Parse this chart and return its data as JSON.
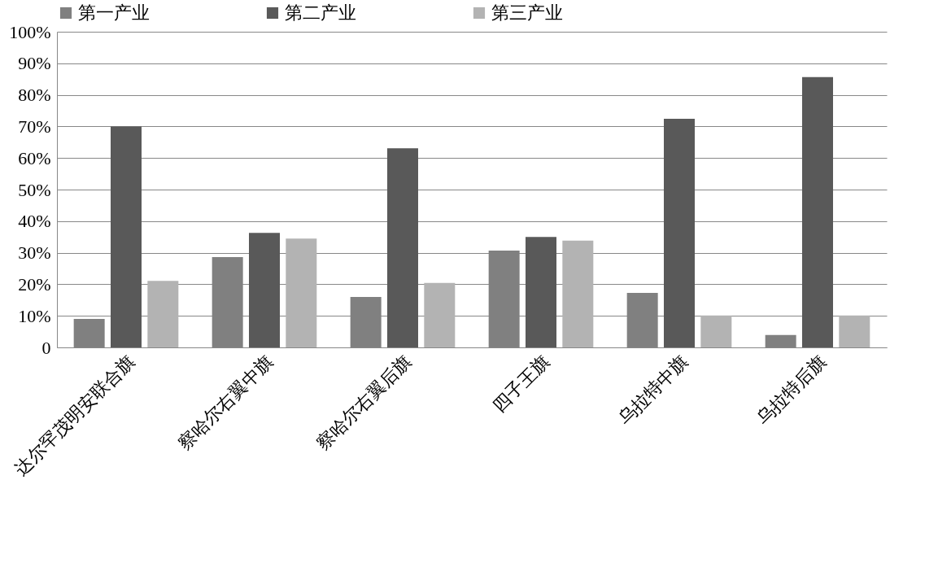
{
  "chart_data": {
    "type": "bar",
    "categories": [
      "达尔罕茂明安联合旗",
      "察哈尔右翼中旗",
      "察哈尔右翼后旗",
      "四子王旗",
      "乌拉特中旗",
      "乌拉特后旗"
    ],
    "series": [
      {
        "name": "第一产业",
        "color": "#808080",
        "values": [
          9,
          28.6,
          16,
          30.7,
          17.3,
          3.9
        ]
      },
      {
        "name": "第二产业",
        "color": "#595959",
        "values": [
          70,
          36.3,
          63.1,
          35,
          72.4,
          85.6
        ]
      },
      {
        "name": "第三产业",
        "color": "#b3b3b3",
        "values": [
          21.1,
          34.5,
          20.4,
          33.8,
          10.1,
          10.1
        ]
      }
    ],
    "ylim": [
      0,
      100
    ],
    "yticks": [
      {
        "value": 0,
        "label": "0"
      },
      {
        "value": 10,
        "label": "10%"
      },
      {
        "value": 20,
        "label": "20%"
      },
      {
        "value": 30,
        "label": "30%"
      },
      {
        "value": 40,
        "label": "40%"
      },
      {
        "value": 50,
        "label": "50%"
      },
      {
        "value": 60,
        "label": "60%"
      },
      {
        "value": 70,
        "label": "70%"
      },
      {
        "value": 80,
        "label": "80%"
      },
      {
        "value": 90,
        "label": "90%"
      },
      {
        "value": 100,
        "label": "100%"
      }
    ],
    "grid": "y",
    "legend": "top"
  }
}
